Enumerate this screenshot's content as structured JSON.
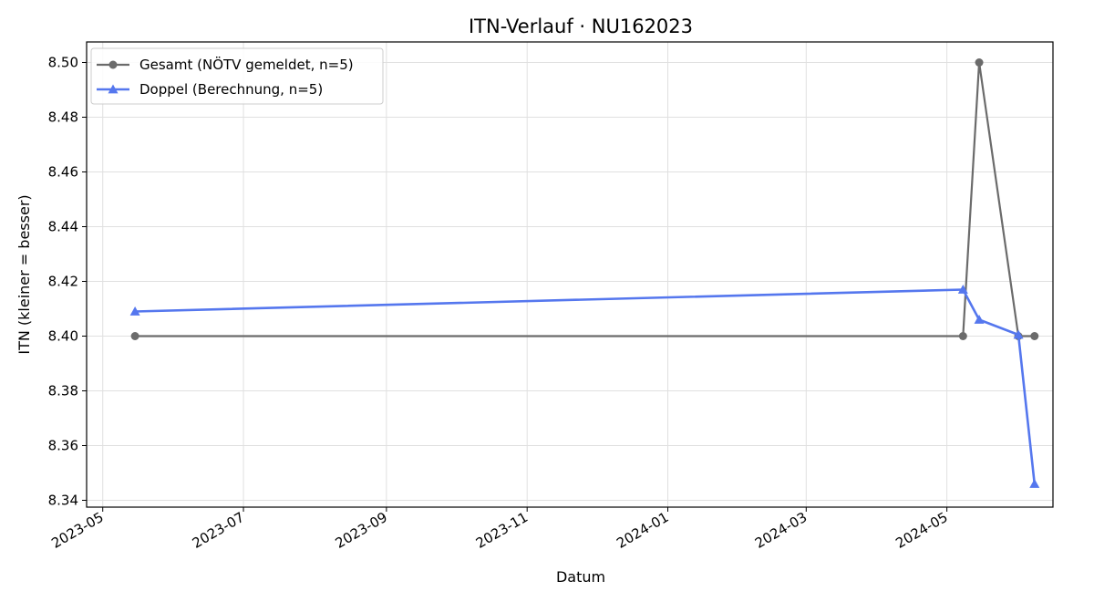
{
  "chart_data": {
    "type": "line",
    "title": "ITN-Verlauf · NU162023",
    "xlabel": "Datum",
    "ylabel": "ITN  (kleiner = besser)",
    "x_type": "date",
    "xlim": [
      "2023-04-24",
      "2024-06-16"
    ],
    "ylim": [
      8.3375,
      8.5075
    ],
    "x_ticks": [
      "2023-05-01",
      "2023-07-01",
      "2023-09-01",
      "2023-11-01",
      "2024-01-01",
      "2024-03-01",
      "2024-05-01"
    ],
    "x_tick_labels": [
      "2023-05",
      "2023-07",
      "2023-09",
      "2023-11",
      "2024-01",
      "2024-03",
      "2024-05"
    ],
    "y_ticks": [
      8.34,
      8.36,
      8.38,
      8.4,
      8.42,
      8.44,
      8.46,
      8.48,
      8.5
    ],
    "y_tick_labels": [
      "8.34",
      "8.36",
      "8.38",
      "8.40",
      "8.42",
      "8.44",
      "8.46",
      "8.48",
      "8.50"
    ],
    "grid": true,
    "legend_position": "top-left",
    "series": [
      {
        "name": "Gesamt (NÖTV gemeldet, n=5)",
        "color": "#6b6b6b",
        "marker": "circle",
        "x": [
          "2023-05-15",
          "2024-05-08",
          "2024-05-15",
          "2024-06-01",
          "2024-06-08"
        ],
        "values": [
          8.4,
          8.4,
          8.5,
          8.4,
          8.4
        ]
      },
      {
        "name": "Doppel (Berechnung, n=5)",
        "color": "#5577ee",
        "marker": "triangle",
        "x": [
          "2023-05-15",
          "2024-05-08",
          "2024-05-15",
          "2024-06-01",
          "2024-06-08"
        ],
        "values": [
          8.409,
          8.417,
          8.406,
          8.4005,
          8.346
        ]
      }
    ]
  }
}
